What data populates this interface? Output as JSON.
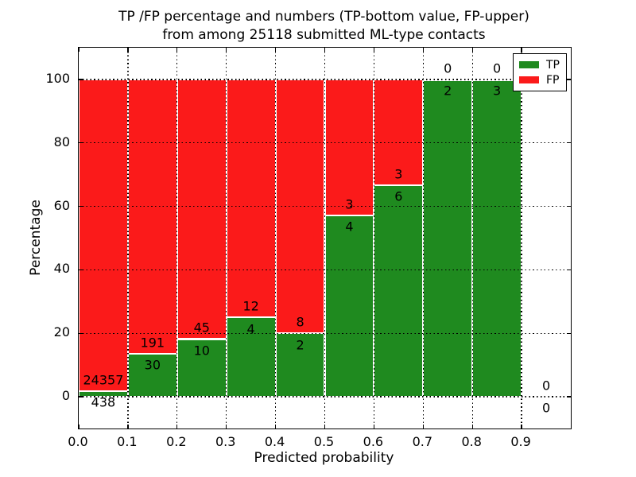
{
  "title": {
    "line1": "TP /FP percentage and numbers (TP-bottom value, FP-upper)",
    "line2": "from among 25118 submitted ML-type contacts"
  },
  "chart_data": {
    "type": "bar",
    "stacked": true,
    "title": "TP /FP percentage and numbers (TP-bottom value, FP-upper) from among 25118 submitted ML-type contacts",
    "xlabel": "Predicted probability",
    "ylabel": "Percentage",
    "xlim": [
      0.0,
      1.0
    ],
    "ylim": [
      -10,
      110
    ],
    "bin_edges": [
      0.0,
      0.1,
      0.2,
      0.3,
      0.4,
      0.5,
      0.6,
      0.7,
      0.8,
      0.9,
      1.0
    ],
    "x_tick_values": [
      0.0,
      0.1,
      0.2,
      0.3,
      0.4,
      0.5,
      0.6,
      0.7,
      0.8,
      0.9
    ],
    "x_tick_labels": [
      "0.0",
      "0.1",
      "0.2",
      "0.3",
      "0.4",
      "0.5",
      "0.6",
      "0.7",
      "0.8",
      "0.9"
    ],
    "y_tick_values": [
      0,
      20,
      40,
      60,
      80,
      100
    ],
    "y_tick_labels": [
      "0",
      "20",
      "40",
      "60",
      "80",
      "100"
    ],
    "grid": "dotted",
    "bar_mode": "percent-stacked-to-100",
    "series": [
      {
        "name": "TP",
        "color": "#1F8A1F",
        "counts": [
          438,
          30,
          10,
          4,
          2,
          4,
          6,
          2,
          3,
          0
        ]
      },
      {
        "name": "FP",
        "color": "#FB1A1A",
        "counts": [
          24357,
          191,
          45,
          12,
          8,
          3,
          3,
          0,
          0,
          0
        ]
      }
    ],
    "tp_percent_of_bin": [
      1.77,
      13.57,
      18.18,
      25.0,
      20.0,
      57.14,
      66.67,
      100.0,
      100.0,
      0.0
    ],
    "total_contacts": 25118,
    "legend": {
      "position": "upper right",
      "entries": [
        {
          "label": "TP",
          "color": "#1F8A1F"
        },
        {
          "label": "FP",
          "color": "#FB1A1A"
        }
      ]
    }
  },
  "colors": {
    "tp": "#1F8A1F",
    "fp": "#FB1A1A",
    "bar_edge": "#FFFFFF",
    "grid": "#000000",
    "frame": "#000000",
    "background": "#FFFFFF",
    "text": "#000000"
  }
}
